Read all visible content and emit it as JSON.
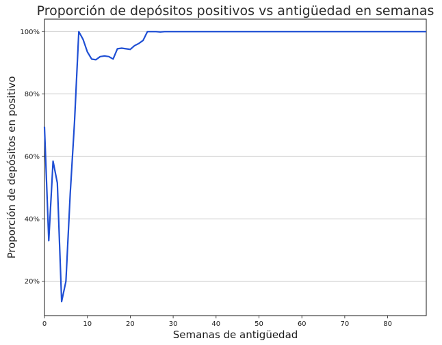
{
  "chart_data": {
    "type": "line",
    "title": "Proporción de depósitos positivos vs antigüedad en semanas",
    "xlabel": "Semanas de antigüedad",
    "ylabel": "Proporción de depósitos en positivo",
    "xlim": [
      0,
      89
    ],
    "ylim": [
      0.09,
      1.04
    ],
    "x_ticks": [
      0,
      10,
      20,
      30,
      40,
      50,
      60,
      70,
      80
    ],
    "x_tick_labels": [
      "0",
      "10",
      "20",
      "30",
      "40",
      "50",
      "60",
      "70",
      "80"
    ],
    "y_ticks": [
      0.2,
      0.4,
      0.6,
      0.8,
      1.0
    ],
    "y_tick_labels": [
      "20%",
      "40%",
      "60%",
      "80%",
      "100%"
    ],
    "grid": "horizontal",
    "legend": "none",
    "series": [
      {
        "color": "#1f4fd4",
        "x": [
          0,
          1,
          2,
          3,
          4,
          5,
          6,
          7,
          8,
          9,
          10,
          11,
          12,
          13,
          14,
          15,
          16,
          17,
          18,
          19,
          20,
          21,
          22,
          23,
          24,
          25,
          26,
          27,
          28,
          29,
          30,
          35,
          40,
          45,
          50,
          55,
          60,
          65,
          70,
          75,
          80,
          85,
          89
        ],
        "y": [
          0.695,
          0.33,
          0.585,
          0.515,
          0.135,
          0.2,
          0.48,
          0.71,
          1.0,
          0.975,
          0.935,
          0.912,
          0.91,
          0.92,
          0.922,
          0.92,
          0.912,
          0.945,
          0.947,
          0.945,
          0.943,
          0.955,
          0.962,
          0.972,
          1.0,
          1.0,
          1.0,
          0.999,
          1.0,
          1.0,
          1.0,
          1.0,
          1.0,
          1.0,
          1.0,
          1.0,
          1.0,
          1.0,
          1.0,
          1.0,
          1.0,
          1.0,
          1.0
        ]
      }
    ]
  }
}
